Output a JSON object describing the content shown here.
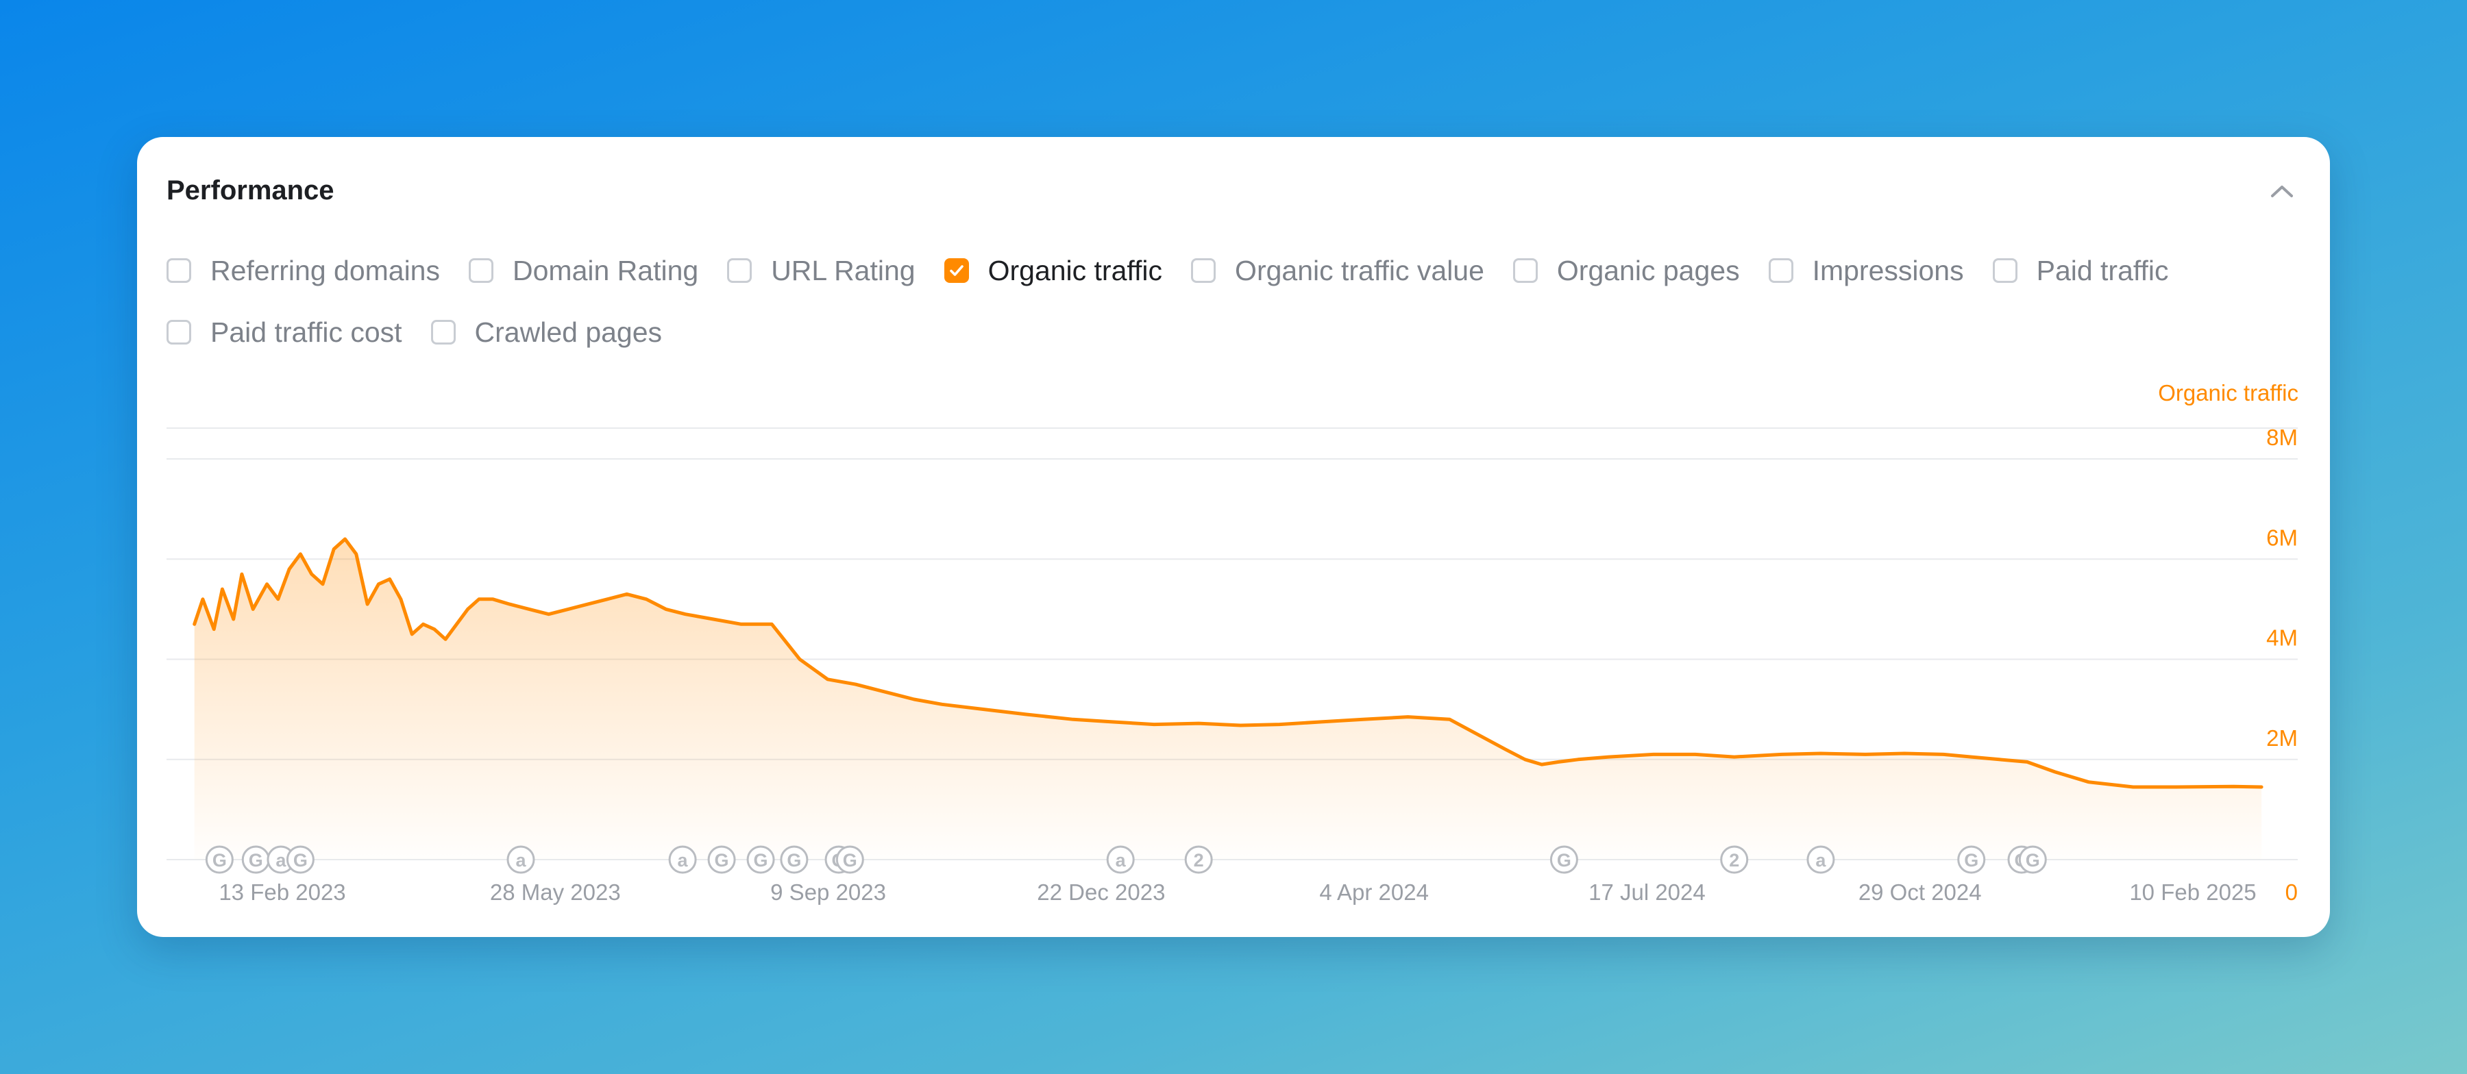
{
  "panel": {
    "title": "Performance"
  },
  "metrics": [
    {
      "label": "Referring domains",
      "checked": false
    },
    {
      "label": "Domain Rating",
      "checked": false
    },
    {
      "label": "URL Rating",
      "checked": false
    },
    {
      "label": "Organic traffic",
      "checked": true
    },
    {
      "label": "Organic traffic value",
      "checked": false
    },
    {
      "label": "Organic pages",
      "checked": false
    },
    {
      "label": "Impressions",
      "checked": false
    },
    {
      "label": "Paid traffic",
      "checked": false
    },
    {
      "label": "Paid traffic cost",
      "checked": false
    },
    {
      "label": "Crawled pages",
      "checked": false
    }
  ],
  "colors": {
    "accent": "#ff8a00",
    "grid": "#e8eaed",
    "axis_text": "#9a9ea5",
    "marker": "#b9bcc1"
  },
  "chart_data": {
    "type": "area",
    "series_label": "Organic traffic",
    "y_ticks": [
      "8M",
      "6M",
      "4M",
      "2M",
      "0"
    ],
    "ylim": [
      0,
      8000000
    ],
    "x_tick_labels": [
      "13 Feb 2023",
      "28 May 2023",
      "9 Sep 2023",
      "22 Dec 2023",
      "4 Apr 2024",
      "17 Jul 2024",
      "29 Oct 2024",
      "10 Feb 2025"
    ],
    "xlim": [
      "2023-01-31",
      "2025-03-05"
    ],
    "grid": true,
    "series": [
      {
        "name": "Organic traffic",
        "x": [
          "2023-02-10",
          "2023-02-13",
          "2023-02-17",
          "2023-02-20",
          "2023-02-24",
          "2023-02-27",
          "2023-03-03",
          "2023-03-08",
          "2023-03-12",
          "2023-03-16",
          "2023-03-20",
          "2023-03-24",
          "2023-03-28",
          "2023-04-01",
          "2023-04-05",
          "2023-04-09",
          "2023-04-13",
          "2023-04-17",
          "2023-04-21",
          "2023-04-25",
          "2023-04-29",
          "2023-05-03",
          "2023-05-07",
          "2023-05-11",
          "2023-05-15",
          "2023-05-19",
          "2023-05-23",
          "2023-05-28",
          "2023-06-03",
          "2023-06-10",
          "2023-06-17",
          "2023-06-24",
          "2023-07-01",
          "2023-07-08",
          "2023-07-15",
          "2023-07-22",
          "2023-07-29",
          "2023-08-05",
          "2023-08-15",
          "2023-08-25",
          "2023-09-05",
          "2023-09-15",
          "2023-09-25",
          "2023-10-05",
          "2023-10-12",
          "2023-10-19",
          "2023-10-26",
          "2023-11-05",
          "2023-11-20",
          "2023-12-05",
          "2023-12-22",
          "2024-01-05",
          "2024-01-20",
          "2024-02-05",
          "2024-02-20",
          "2024-03-05",
          "2024-03-20",
          "2024-04-04",
          "2024-04-20",
          "2024-05-05",
          "2024-05-15",
          "2024-05-25",
          "2024-06-01",
          "2024-06-07",
          "2024-06-13",
          "2024-06-20",
          "2024-07-01",
          "2024-07-17",
          "2024-08-01",
          "2024-08-15",
          "2024-09-01",
          "2024-09-15",
          "2024-10-01",
          "2024-10-15",
          "2024-10-29",
          "2024-11-08",
          "2024-11-18",
          "2024-11-28",
          "2024-12-08",
          "2024-12-20",
          "2025-01-05",
          "2025-01-20",
          "2025-02-10",
          "2025-02-20"
        ],
        "values": [
          4700000,
          5200000,
          4600000,
          5400000,
          4800000,
          5700000,
          5000000,
          5500000,
          5200000,
          5800000,
          6100000,
          5700000,
          5500000,
          6200000,
          6400000,
          6100000,
          5100000,
          5500000,
          5600000,
          5200000,
          4500000,
          4700000,
          4600000,
          4400000,
          4700000,
          5000000,
          5200000,
          5200000,
          5100000,
          5000000,
          4900000,
          5000000,
          5100000,
          5200000,
          5300000,
          5200000,
          5000000,
          4900000,
          4800000,
          4700000,
          4700000,
          4000000,
          3600000,
          3500000,
          3400000,
          3300000,
          3200000,
          3100000,
          3000000,
          2900000,
          2800000,
          2750000,
          2700000,
          2720000,
          2680000,
          2700000,
          2750000,
          2800000,
          2850000,
          2800000,
          2500000,
          2200000,
          2000000,
          1900000,
          1950000,
          2000000,
          2050000,
          2100000,
          2100000,
          2050000,
          2100000,
          2120000,
          2100000,
          2120000,
          2100000,
          2050000,
          2000000,
          1950000,
          1750000,
          1550000,
          1450000,
          1450000,
          1460000,
          1450000
        ]
      }
    ],
    "annotations": [
      {
        "date": "2023-02-19",
        "label": "G"
      },
      {
        "date": "2023-03-04",
        "label": "G"
      },
      {
        "date": "2023-03-13",
        "label": "a"
      },
      {
        "date": "2023-03-20",
        "label": "G"
      },
      {
        "date": "2023-06-07",
        "label": "a"
      },
      {
        "date": "2023-08-04",
        "label": "a"
      },
      {
        "date": "2023-08-18",
        "label": "G"
      },
      {
        "date": "2023-09-01",
        "label": "G"
      },
      {
        "date": "2023-09-13",
        "label": "G"
      },
      {
        "date": "2023-09-29",
        "label": "G"
      },
      {
        "date": "2023-10-03",
        "label": "G"
      },
      {
        "date": "2024-01-08",
        "label": "a"
      },
      {
        "date": "2024-02-05",
        "label": "2"
      },
      {
        "date": "2024-06-15",
        "label": "G"
      },
      {
        "date": "2024-08-15",
        "label": "2"
      },
      {
        "date": "2024-09-15",
        "label": "a"
      },
      {
        "date": "2024-11-08",
        "label": "G"
      },
      {
        "date": "2024-11-26",
        "label": "G"
      },
      {
        "date": "2024-11-30",
        "label": "G"
      }
    ]
  }
}
